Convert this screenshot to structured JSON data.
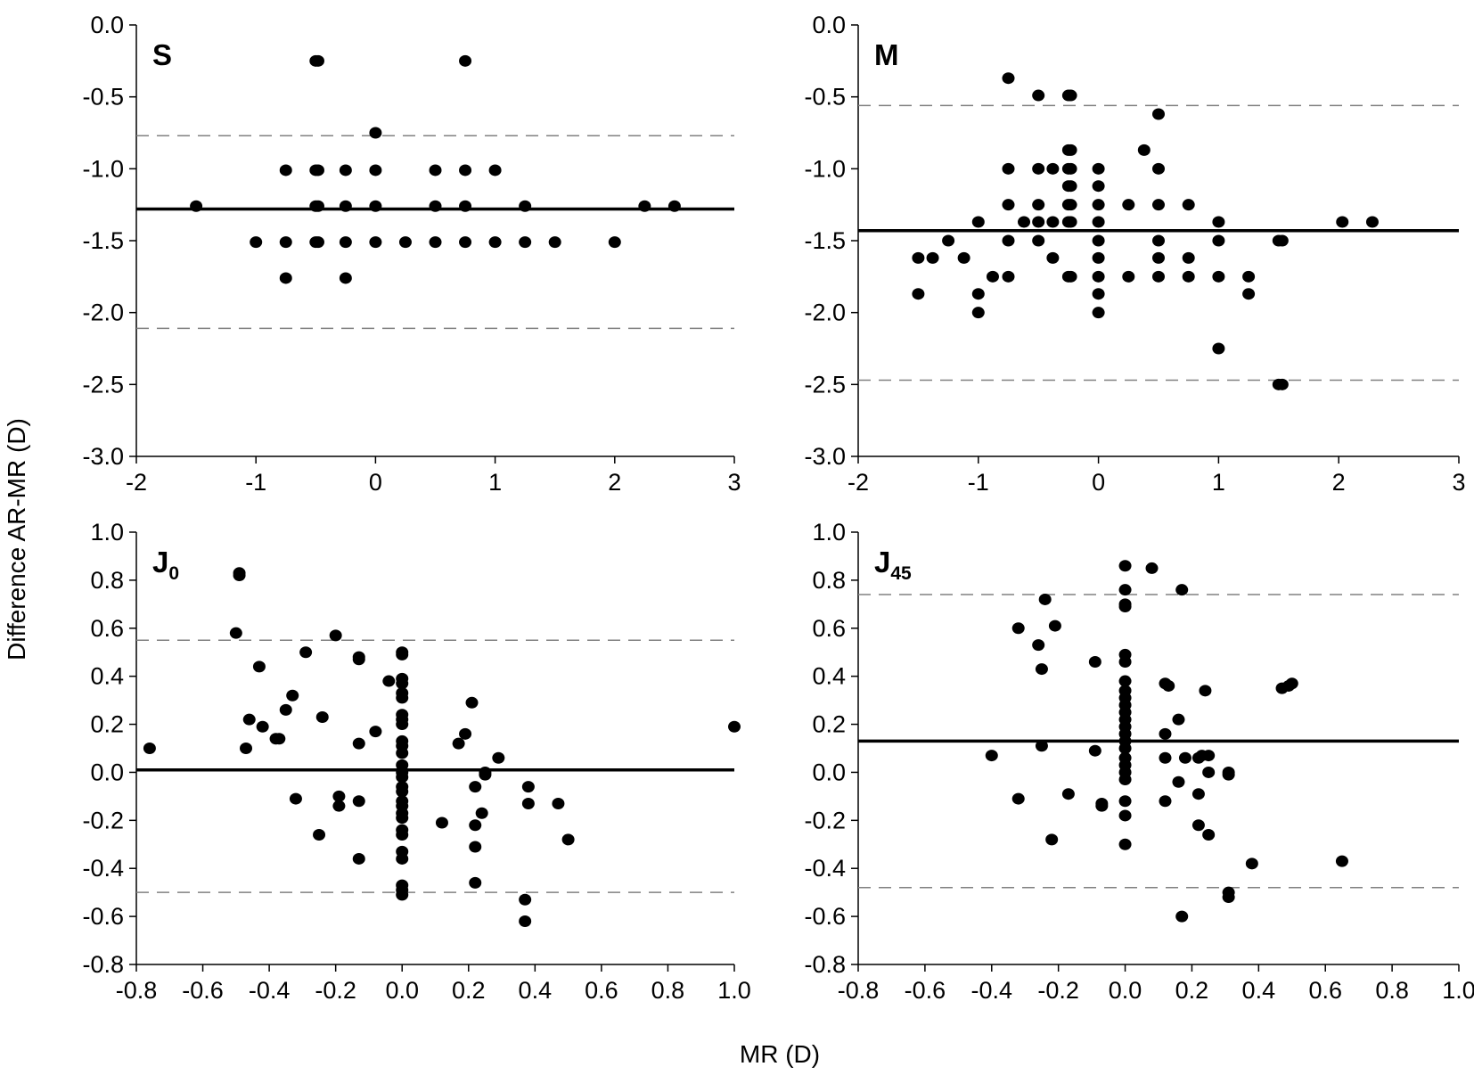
{
  "figure": {
    "ylabel": "Difference AR-MR (D)",
    "xlabel": "MR (D)"
  },
  "chart_data": [
    {
      "type": "scatter",
      "panel": "S",
      "panel_sub": "",
      "xlim": [
        -2,
        3
      ],
      "ylim": [
        -3.0,
        0.0
      ],
      "xticks": [
        "-2",
        "-1",
        "0",
        "1",
        "2",
        "3"
      ],
      "yticks": [
        "0.0",
        "-0.5",
        "-1.0",
        "-1.5",
        "-2.0",
        "-2.5",
        "-3.0"
      ],
      "mean": -1.28,
      "loa": [
        -0.77,
        -2.11
      ],
      "points": [
        [
          -1.5,
          -1.26
        ],
        [
          -0.5,
          -0.25
        ],
        [
          -0.48,
          -0.25
        ],
        [
          0.75,
          -0.25
        ],
        [
          0.0,
          -0.75
        ],
        [
          -0.75,
          -1.01
        ],
        [
          -0.5,
          -1.01
        ],
        [
          -0.48,
          -1.01
        ],
        [
          -0.25,
          -1.01
        ],
        [
          0.0,
          -1.01
        ],
        [
          0.5,
          -1.01
        ],
        [
          0.75,
          -1.01
        ],
        [
          1.0,
          -1.01
        ],
        [
          -0.5,
          -1.26
        ],
        [
          -0.48,
          -1.26
        ],
        [
          -0.25,
          -1.26
        ],
        [
          0.0,
          -1.26
        ],
        [
          0.5,
          -1.26
        ],
        [
          0.75,
          -1.26
        ],
        [
          1.25,
          -1.26
        ],
        [
          2.25,
          -1.26
        ],
        [
          2.5,
          -1.26
        ],
        [
          -1.0,
          -1.51
        ],
        [
          -0.75,
          -1.51
        ],
        [
          -0.5,
          -1.51
        ],
        [
          -0.48,
          -1.51
        ],
        [
          -0.25,
          -1.51
        ],
        [
          0.0,
          -1.51
        ],
        [
          0.25,
          -1.51
        ],
        [
          0.5,
          -1.51
        ],
        [
          0.75,
          -1.51
        ],
        [
          1.0,
          -1.51
        ],
        [
          1.25,
          -1.51
        ],
        [
          1.5,
          -1.51
        ],
        [
          2.0,
          -1.51
        ],
        [
          -0.75,
          -1.76
        ],
        [
          -0.25,
          -1.76
        ]
      ]
    },
    {
      "type": "scatter",
      "panel": "M",
      "panel_sub": "",
      "xlim": [
        -2,
        3
      ],
      "ylim": [
        -3.0,
        0.0
      ],
      "xticks": [
        "-2",
        "-1",
        "0",
        "1",
        "2",
        "3"
      ],
      "yticks": [
        "0.0",
        "-0.5",
        "-1.0",
        "-1.5",
        "-2.0",
        "-2.5",
        "-3.0"
      ],
      "mean": -1.43,
      "loa": [
        -0.56,
        -2.47
      ],
      "points": [
        [
          -0.75,
          -0.37
        ],
        [
          -0.5,
          -0.49
        ],
        [
          -0.25,
          -0.49
        ],
        [
          -0.23,
          -0.49
        ],
        [
          0.5,
          -0.62
        ],
        [
          -0.25,
          -0.87
        ],
        [
          -0.23,
          -0.87
        ],
        [
          0.38,
          -0.87
        ],
        [
          -0.75,
          -1.0
        ],
        [
          -0.5,
          -1.0
        ],
        [
          -0.38,
          -1.0
        ],
        [
          -0.25,
          -1.0
        ],
        [
          -0.23,
          -1.0
        ],
        [
          0.0,
          -1.0
        ],
        [
          0.5,
          -1.0
        ],
        [
          -0.25,
          -1.12
        ],
        [
          -0.23,
          -1.12
        ],
        [
          0.0,
          -1.12
        ],
        [
          -0.75,
          -1.25
        ],
        [
          -0.5,
          -1.25
        ],
        [
          -0.25,
          -1.25
        ],
        [
          -0.23,
          -1.25
        ],
        [
          0.0,
          -1.25
        ],
        [
          0.25,
          -1.25
        ],
        [
          0.5,
          -1.25
        ],
        [
          0.75,
          -1.25
        ],
        [
          -1.0,
          -1.37
        ],
        [
          -0.62,
          -1.37
        ],
        [
          -0.5,
          -1.37
        ],
        [
          -0.38,
          -1.37
        ],
        [
          -0.25,
          -1.37
        ],
        [
          -0.23,
          -1.37
        ],
        [
          0.0,
          -1.37
        ],
        [
          1.0,
          -1.37
        ],
        [
          2.03,
          -1.37
        ],
        [
          2.28,
          -1.37
        ],
        [
          -1.25,
          -1.5
        ],
        [
          -0.75,
          -1.5
        ],
        [
          -0.5,
          -1.5
        ],
        [
          0.0,
          -1.5
        ],
        [
          0.5,
          -1.5
        ],
        [
          1.0,
          -1.5
        ],
        [
          1.5,
          -1.5
        ],
        [
          1.53,
          -1.5
        ],
        [
          -1.5,
          -1.62
        ],
        [
          -1.38,
          -1.62
        ],
        [
          -1.12,
          -1.62
        ],
        [
          -0.38,
          -1.62
        ],
        [
          0.0,
          -1.62
        ],
        [
          0.5,
          -1.62
        ],
        [
          0.75,
          -1.62
        ],
        [
          -0.88,
          -1.75
        ],
        [
          -0.75,
          -1.75
        ],
        [
          -0.25,
          -1.75
        ],
        [
          -0.23,
          -1.75
        ],
        [
          0.0,
          -1.75
        ],
        [
          0.25,
          -1.75
        ],
        [
          0.5,
          -1.75
        ],
        [
          0.75,
          -1.75
        ],
        [
          1.0,
          -1.75
        ],
        [
          1.25,
          -1.75
        ],
        [
          -1.5,
          -1.87
        ],
        [
          -1.0,
          -1.87
        ],
        [
          0.0,
          -1.87
        ],
        [
          1.25,
          -1.87
        ],
        [
          -1.0,
          -2.0
        ],
        [
          0.0,
          -2.0
        ],
        [
          1.0,
          -2.25
        ],
        [
          1.5,
          -2.5
        ],
        [
          1.53,
          -2.5
        ]
      ]
    },
    {
      "type": "scatter",
      "panel": "J",
      "panel_sub": "0",
      "xlim": [
        -0.8,
        1.0
      ],
      "ylim": [
        -0.8,
        1.0
      ],
      "xticks": [
        "-0.8",
        "-0.6",
        "-0.4",
        "-0.2",
        "0.0",
        "0.2",
        "0.4",
        "0.6",
        "0.8",
        "1.0"
      ],
      "yticks": [
        "1.0",
        "0.8",
        "0.6",
        "0.4",
        "0.2",
        "0.0",
        "-0.2",
        "-0.4",
        "-0.6",
        "-0.8"
      ],
      "mean": 0.01,
      "loa": [
        0.55,
        -0.5
      ],
      "points": [
        [
          -0.49,
          0.83
        ],
        [
          -0.49,
          0.82
        ],
        [
          -0.5,
          0.58
        ],
        [
          -0.2,
          0.57
        ],
        [
          -0.29,
          0.5
        ],
        [
          -0.13,
          0.48
        ],
        [
          -0.13,
          0.47
        ],
        [
          -0.43,
          0.44
        ],
        [
          -0.04,
          0.38
        ],
        [
          -0.33,
          0.32
        ],
        [
          -0.35,
          0.26
        ],
        [
          -0.46,
          0.22
        ],
        [
          -0.24,
          0.23
        ],
        [
          -0.42,
          0.19
        ],
        [
          -0.38,
          0.14
        ],
        [
          -0.37,
          0.14
        ],
        [
          -0.08,
          0.17
        ],
        [
          -0.13,
          0.12
        ],
        [
          -0.47,
          0.1
        ],
        [
          -0.76,
          0.1
        ],
        [
          1.0,
          0.19
        ],
        [
          0.21,
          0.29
        ],
        [
          0.19,
          0.16
        ],
        [
          0.17,
          0.12
        ],
        [
          0.29,
          0.06
        ],
        [
          0.25,
          0.0
        ],
        [
          0.25,
          -0.01
        ],
        [
          0.22,
          -0.06
        ],
        [
          0.24,
          -0.17
        ],
        [
          0.22,
          -0.22
        ],
        [
          0.12,
          -0.21
        ],
        [
          0.22,
          -0.31
        ],
        [
          0.22,
          -0.46
        ],
        [
          0.38,
          -0.06
        ],
        [
          0.38,
          -0.13
        ],
        [
          0.47,
          -0.13
        ],
        [
          0.5,
          -0.28
        ],
        [
          0.37,
          -0.53
        ],
        [
          0.37,
          -0.62
        ],
        [
          -0.32,
          -0.11
        ],
        [
          -0.19,
          -0.1
        ],
        [
          -0.19,
          -0.14
        ],
        [
          -0.13,
          -0.12
        ],
        [
          -0.25,
          -0.26
        ],
        [
          -0.13,
          -0.36
        ],
        [
          0.0,
          0.5
        ],
        [
          0.0,
          0.49
        ],
        [
          0.0,
          0.39
        ],
        [
          0.0,
          0.37
        ],
        [
          0.0,
          0.33
        ],
        [
          0.0,
          0.31
        ],
        [
          0.0,
          0.24
        ],
        [
          0.0,
          0.22
        ],
        [
          0.0,
          0.2
        ],
        [
          0.0,
          0.13
        ],
        [
          0.0,
          0.11
        ],
        [
          0.0,
          0.08
        ],
        [
          0.0,
          0.03
        ],
        [
          0.0,
          0.0
        ],
        [
          0.0,
          -0.02
        ],
        [
          0.0,
          -0.06
        ],
        [
          0.0,
          -0.08
        ],
        [
          0.0,
          -0.12
        ],
        [
          0.0,
          -0.14
        ],
        [
          0.0,
          -0.17
        ],
        [
          0.0,
          -0.19
        ],
        [
          0.0,
          -0.24
        ],
        [
          0.0,
          -0.26
        ],
        [
          0.0,
          -0.33
        ],
        [
          0.0,
          -0.36
        ],
        [
          0.0,
          -0.47
        ],
        [
          0.0,
          -0.49
        ],
        [
          0.0,
          -0.51
        ]
      ]
    },
    {
      "type": "scatter",
      "panel": "J",
      "panel_sub": "45",
      "xlim": [
        -0.8,
        1.0
      ],
      "ylim": [
        -0.8,
        1.0
      ],
      "xticks": [
        "-0.8",
        "-0.6",
        "-0.4",
        "-0.2",
        "0.0",
        "0.2",
        "0.4",
        "0.6",
        "0.8",
        "1.0"
      ],
      "yticks": [
        "1.0",
        "0.8",
        "0.6",
        "0.4",
        "0.2",
        "0.0",
        "-0.2",
        "-0.4",
        "-0.6",
        "-0.8"
      ],
      "mean": 0.13,
      "loa": [
        0.74,
        -0.48
      ],
      "points": [
        [
          0.0,
          0.86
        ],
        [
          0.08,
          0.85
        ],
        [
          0.17,
          0.76
        ],
        [
          0.0,
          0.76
        ],
        [
          -0.24,
          0.72
        ],
        [
          0.0,
          0.7
        ],
        [
          0.0,
          0.69
        ],
        [
          -0.21,
          0.61
        ],
        [
          -0.32,
          0.6
        ],
        [
          -0.26,
          0.53
        ],
        [
          -0.25,
          0.43
        ],
        [
          -0.09,
          0.46
        ],
        [
          0.12,
          0.37
        ],
        [
          0.13,
          0.36
        ],
        [
          0.24,
          0.34
        ],
        [
          0.47,
          0.35
        ],
        [
          0.49,
          0.36
        ],
        [
          0.5,
          0.37
        ],
        [
          0.16,
          0.22
        ],
        [
          0.12,
          0.16
        ],
        [
          -0.25,
          0.11
        ],
        [
          -0.4,
          0.07
        ],
        [
          -0.09,
          0.09
        ],
        [
          0.12,
          0.06
        ],
        [
          0.18,
          0.06
        ],
        [
          0.22,
          0.06
        ],
        [
          0.23,
          0.07
        ],
        [
          0.25,
          0.07
        ],
        [
          0.25,
          0.0
        ],
        [
          0.31,
          0.0
        ],
        [
          0.31,
          -0.01
        ],
        [
          0.16,
          -0.04
        ],
        [
          0.22,
          -0.09
        ],
        [
          0.12,
          -0.12
        ],
        [
          -0.17,
          -0.09
        ],
        [
          -0.32,
          -0.11
        ],
        [
          -0.07,
          -0.13
        ],
        [
          -0.07,
          -0.14
        ],
        [
          0.22,
          -0.22
        ],
        [
          0.25,
          -0.26
        ],
        [
          -0.22,
          -0.28
        ],
        [
          0.38,
          -0.38
        ],
        [
          0.65,
          -0.37
        ],
        [
          0.31,
          -0.5
        ],
        [
          0.31,
          -0.52
        ],
        [
          0.17,
          -0.6
        ],
        [
          0.0,
          0.49
        ],
        [
          0.0,
          0.46
        ],
        [
          0.0,
          0.38
        ],
        [
          0.0,
          0.34
        ],
        [
          0.0,
          0.31
        ],
        [
          0.0,
          0.28
        ],
        [
          0.0,
          0.25
        ],
        [
          0.0,
          0.22
        ],
        [
          0.0,
          0.19
        ],
        [
          0.0,
          0.16
        ],
        [
          0.0,
          0.13
        ],
        [
          0.0,
          0.1
        ],
        [
          0.0,
          0.06
        ],
        [
          0.0,
          0.03
        ],
        [
          0.0,
          0.0
        ],
        [
          0.0,
          -0.03
        ],
        [
          0.0,
          -0.12
        ],
        [
          0.0,
          -0.18
        ],
        [
          0.0,
          -0.3
        ]
      ]
    }
  ]
}
